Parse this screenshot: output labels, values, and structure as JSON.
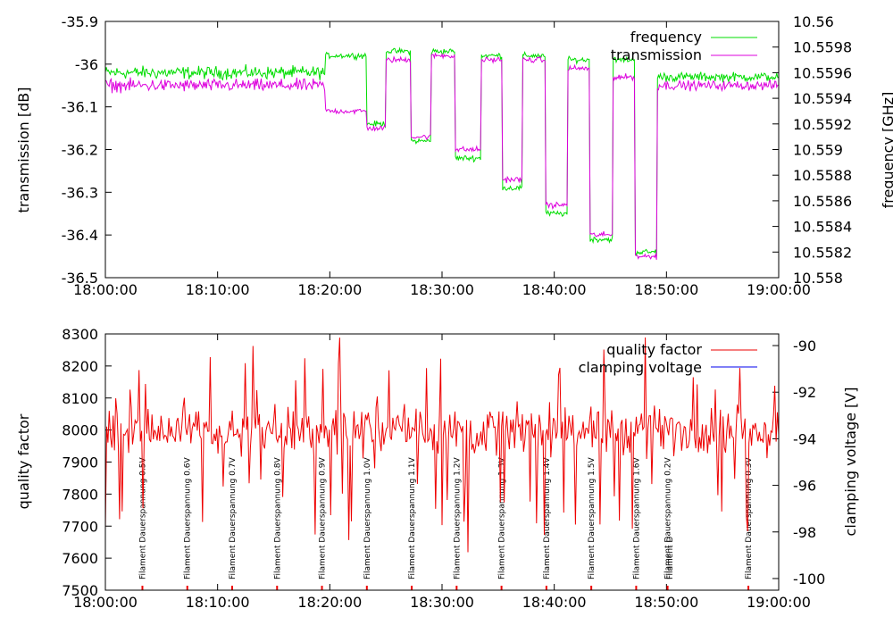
{
  "chart_data": [
    {
      "type": "line",
      "panel": "top",
      "title": "",
      "xlabel": "",
      "ylabel": "transmission [dB]",
      "y2label": "frequency [GHz]",
      "xlim": [
        0,
        60
      ],
      "ylim": [
        -36.5,
        -35.9
      ],
      "y2lim": [
        10.558,
        10.56
      ],
      "x_ticks": [
        0,
        10,
        20,
        30,
        40,
        50,
        60
      ],
      "x_tick_labels": [
        "18:00:00",
        "18:10:00",
        "18:20:00",
        "18:30:00",
        "18:40:00",
        "18:50:00",
        "19:00:00"
      ],
      "y_ticks": [
        -35.9,
        -36,
        -36.1,
        -36.2,
        -36.3,
        -36.4,
        -36.5
      ],
      "y_tick_labels": [
        "-35.9",
        "-36",
        "-36.1",
        "-36.2",
        "-36.3",
        "-36.4",
        "-36.5"
      ],
      "y2_ticks": [
        10.56,
        10.5598,
        10.5596,
        10.5594,
        10.5592,
        10.559,
        10.5588,
        10.5586,
        10.5584,
        10.5582,
        10.558
      ],
      "y2_tick_labels": [
        "10.56",
        "10.5598",
        "10.5596",
        "10.5594",
        "10.5592",
        "10.559",
        "10.5588",
        "10.5586",
        "10.5584",
        "10.5582",
        "10.558"
      ],
      "legend_position": "top-right",
      "series": [
        {
          "name": "frequency",
          "color": "#00dd00",
          "axis": "left",
          "segments": [
            {
              "start": 0,
              "end": 19.6,
              "level": -36.02
            },
            {
              "start": 19.6,
              "end": 23.3,
              "level": -35.98
            },
            {
              "start": 23.3,
              "end": 25.0,
              "level": -36.14
            },
            {
              "start": 25.0,
              "end": 27.2,
              "level": -35.97
            },
            {
              "start": 27.2,
              "end": 29.0,
              "level": -36.18
            },
            {
              "start": 29.0,
              "end": 31.2,
              "level": -35.97
            },
            {
              "start": 31.2,
              "end": 33.5,
              "level": -36.22
            },
            {
              "start": 33.5,
              "end": 35.4,
              "level": -35.98
            },
            {
              "start": 35.4,
              "end": 37.2,
              "level": -36.29
            },
            {
              "start": 37.2,
              "end": 39.2,
              "level": -35.98
            },
            {
              "start": 39.2,
              "end": 41.2,
              "level": -36.35
            },
            {
              "start": 41.2,
              "end": 43.2,
              "level": -35.99
            },
            {
              "start": 43.2,
              "end": 45.2,
              "level": -36.41
            },
            {
              "start": 45.2,
              "end": 47.2,
              "level": -35.99
            },
            {
              "start": 47.2,
              "end": 49.2,
              "level": -36.44
            },
            {
              "start": 49.2,
              "end": 60,
              "level": -36.03
            }
          ]
        },
        {
          "name": "transmission",
          "color": "#dd00dd",
          "axis": "left",
          "segments": [
            {
              "start": 0,
              "end": 19.6,
              "level": -36.05
            },
            {
              "start": 19.6,
              "end": 23.3,
              "level": -36.11
            },
            {
              "start": 23.3,
              "end": 25.0,
              "level": -36.15
            },
            {
              "start": 25.0,
              "end": 27.2,
              "level": -35.99
            },
            {
              "start": 27.2,
              "end": 29.0,
              "level": -36.17
            },
            {
              "start": 29.0,
              "end": 31.2,
              "level": -35.98
            },
            {
              "start": 31.2,
              "end": 33.5,
              "level": -36.2
            },
            {
              "start": 33.5,
              "end": 35.4,
              "level": -35.99
            },
            {
              "start": 35.4,
              "end": 37.2,
              "level": -36.27
            },
            {
              "start": 37.2,
              "end": 39.2,
              "level": -35.99
            },
            {
              "start": 39.2,
              "end": 41.2,
              "level": -36.33
            },
            {
              "start": 41.2,
              "end": 43.2,
              "level": -36.01
            },
            {
              "start": 43.2,
              "end": 45.2,
              "level": -36.4
            },
            {
              "start": 45.2,
              "end": 47.2,
              "level": -36.03
            },
            {
              "start": 47.2,
              "end": 49.2,
              "level": -36.45
            },
            {
              "start": 49.2,
              "end": 60,
              "level": -36.05
            }
          ]
        }
      ]
    },
    {
      "type": "line",
      "panel": "bottom",
      "title": "",
      "xlabel": "",
      "ylabel": "quality factor",
      "y2label": "clamping voltage [V]",
      "xlim": [
        0,
        60
      ],
      "ylim": [
        7500,
        8300
      ],
      "y2lim": [
        -100.5,
        -89.5
      ],
      "x_ticks": [
        0,
        10,
        20,
        30,
        40,
        50,
        60
      ],
      "x_tick_labels": [
        "18:00:00",
        "18:10:00",
        "18:20:00",
        "18:30:00",
        "18:40:00",
        "18:50:00",
        "19:00:00"
      ],
      "y_ticks": [
        8300,
        8200,
        8100,
        8000,
        7900,
        7800,
        7700,
        7600,
        7500
      ],
      "y_tick_labels": [
        "8300",
        "8200",
        "8100",
        "8000",
        "7900",
        "7800",
        "7700",
        "7600",
        "7500"
      ],
      "y2_ticks": [
        -90,
        -92,
        -94,
        -96,
        -98,
        -100
      ],
      "y2_tick_labels": [
        "-90",
        "-92",
        "-94",
        "-96",
        "-98",
        "-100"
      ],
      "legend_position": "top-right",
      "series": [
        {
          "name": "quality factor",
          "color": "#ee0000",
          "axis": "left",
          "base": 8000
        },
        {
          "name": "clamping voltage",
          "color": "#0000ee",
          "axis": "right",
          "values": []
        }
      ],
      "annotations": [
        {
          "x": 3.3,
          "text": "Filament Dauerspannung 0.5V"
        },
        {
          "x": 7.3,
          "text": "Filament Dauerspannung 0.6V"
        },
        {
          "x": 11.3,
          "text": "Filament Dauerspannung 0.7V"
        },
        {
          "x": 15.3,
          "text": "Filament Dauerspannung 0.8V"
        },
        {
          "x": 19.3,
          "text": "Filament Dauerspannung 0.9V"
        },
        {
          "x": 23.3,
          "text": "Filament Dauerspannung 1.0V"
        },
        {
          "x": 27.3,
          "text": "Filament Dauerspannung 1.1V"
        },
        {
          "x": 31.3,
          "text": "Filament Dauerspannung 1.2V"
        },
        {
          "x": 35.3,
          "text": "Filament Dauerspannung 1.3V"
        },
        {
          "x": 39.3,
          "text": "Filament Dauerspannung 1.4V"
        },
        {
          "x": 43.3,
          "text": "Filament Dauerspannung 1.5V"
        },
        {
          "x": 47.3,
          "text": "Filament Dauerspannung 1.6V"
        },
        {
          "x": 50.1,
          "text": "Filament Dauerspannung 0.2V"
        },
        {
          "x": 57.3,
          "text": "Filament Dauerspannung 0.3V"
        }
      ],
      "overlap_annotation": {
        "x": 50.3,
        "text": "Filament D"
      }
    }
  ]
}
